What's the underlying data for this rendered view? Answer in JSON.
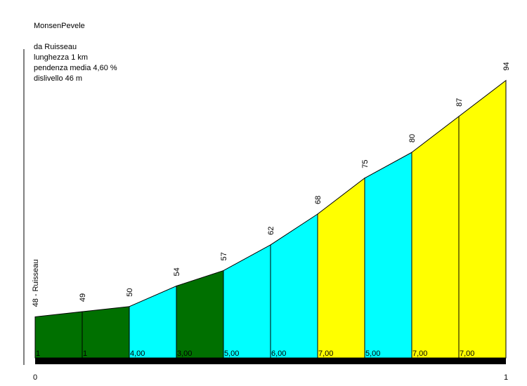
{
  "info": {
    "name": "MonsenPevele",
    "start": "da Ruisseau",
    "length": "lunghezza 1 km",
    "avg_gradient": "pendenza media 4,60 %",
    "elevation_gain": "dislivello 46 m"
  },
  "chart_data": {
    "type": "area",
    "title": "MonsenPevele",
    "x_unit": "km",
    "x_ticks": [
      "0",
      "1"
    ],
    "xlim": [
      0,
      1
    ],
    "ylim": [
      40,
      96
    ],
    "start_label": "48 - Ruisseau",
    "segments": [
      {
        "index": 0,
        "gradient_label": "1",
        "color": "#007000"
      },
      {
        "index": 1,
        "gradient_label": "1",
        "color": "#007000"
      },
      {
        "index": 2,
        "gradient_label": "4,00",
        "color": "#00ffff"
      },
      {
        "index": 3,
        "gradient_label": "3,00",
        "color": "#007000"
      },
      {
        "index": 4,
        "gradient_label": "5,00",
        "color": "#00ffff"
      },
      {
        "index": 5,
        "gradient_label": "6,00",
        "color": "#00ffff"
      },
      {
        "index": 6,
        "gradient_label": "7,00",
        "color": "#ffff00"
      },
      {
        "index": 7,
        "gradient_label": "5,00",
        "color": "#00ffff"
      },
      {
        "index": 8,
        "gradient_label": "7,00",
        "color": "#ffff00"
      },
      {
        "index": 9,
        "gradient_label": "7,00",
        "color": "#ffff00"
      }
    ],
    "elevations": [
      48,
      49,
      50,
      54,
      57,
      62,
      68,
      75,
      80,
      87,
      94
    ],
    "elevation_labels": [
      "48 - Ruisseau",
      "49",
      "50",
      "54",
      "57",
      "62",
      "68",
      "75",
      "80",
      "87",
      "94"
    ]
  }
}
